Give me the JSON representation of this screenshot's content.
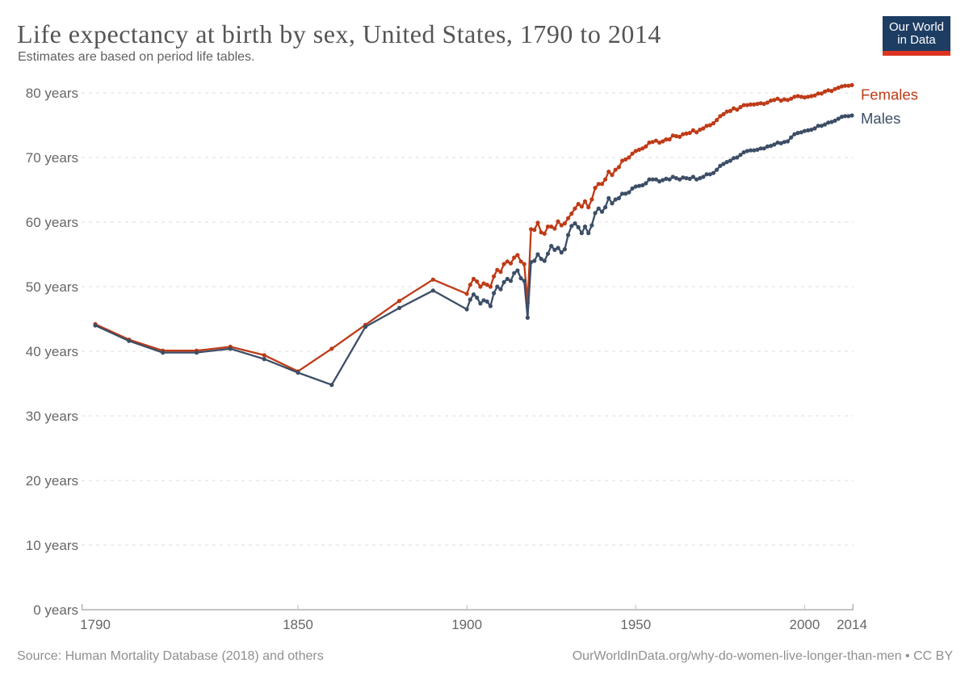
{
  "header": {
    "title": "Life expectancy at birth by sex, United States, 1790 to 2014",
    "subtitle": "Estimates are based on period life tables."
  },
  "logo": {
    "line1": "Our World",
    "line2": "in Data",
    "bg_color": "#1d3d63",
    "stripe_color": "#dc3421"
  },
  "footer": {
    "source": "Source: Human Mortality Database (2018) and others",
    "right_text": "OurWorldInData.org/why-do-women-live-longer-than-men • CC BY"
  },
  "colors": {
    "female_series": "#be3b17",
    "male_series": "#3c4e66",
    "title_text": "#555555",
    "tick_text": "#666666",
    "gridline": "#dedede",
    "axis_line": "#b0b0b0",
    "footer_text": "#8f8f8f"
  },
  "chart_data": {
    "type": "line",
    "title": "Life expectancy at birth by sex, United States, 1790 to 2014",
    "subtitle": "Estimates are based on period life tables.",
    "xlabel": "",
    "ylabel": "",
    "x_range": [
      1790,
      2014
    ],
    "y_range": [
      0,
      80
    ],
    "grid": "horizontal-dashed",
    "legend_position": "right-of-line-ends",
    "y_ticks": [
      {
        "value": 0,
        "label": "0 years"
      },
      {
        "value": 10,
        "label": "10 years"
      },
      {
        "value": 20,
        "label": "20 years"
      },
      {
        "value": 30,
        "label": "30 years"
      },
      {
        "value": 40,
        "label": "40 years"
      },
      {
        "value": 50,
        "label": "50 years"
      },
      {
        "value": 60,
        "label": "60 years"
      },
      {
        "value": 70,
        "label": "70 years"
      },
      {
        "value": 80,
        "label": "80 years"
      }
    ],
    "x_ticks": [
      {
        "year": 1790,
        "label": "1790",
        "tick": false
      },
      {
        "year": 1850,
        "label": "1850",
        "tick": true
      },
      {
        "year": 1900,
        "label": "1900",
        "tick": true
      },
      {
        "year": 1950,
        "label": "1950",
        "tick": true
      },
      {
        "year": 2000,
        "label": "2000",
        "tick": true
      },
      {
        "year": 2014,
        "label": "2014",
        "tick": false
      }
    ],
    "x": [
      1790,
      1800,
      1810,
      1820,
      1830,
      1840,
      1850,
      1860,
      1870,
      1880,
      1890,
      1900,
      1901,
      1902,
      1903,
      1904,
      1905,
      1906,
      1907,
      1908,
      1909,
      1910,
      1911,
      1912,
      1913,
      1914,
      1915,
      1916,
      1917,
      1918,
      1919,
      1920,
      1921,
      1922,
      1923,
      1924,
      1925,
      1926,
      1927,
      1928,
      1929,
      1930,
      1931,
      1932,
      1933,
      1934,
      1935,
      1936,
      1937,
      1938,
      1939,
      1940,
      1941,
      1942,
      1943,
      1944,
      1945,
      1946,
      1947,
      1948,
      1949,
      1950,
      1951,
      1952,
      1953,
      1954,
      1955,
      1956,
      1957,
      1958,
      1959,
      1960,
      1961,
      1962,
      1963,
      1964,
      1965,
      1966,
      1967,
      1968,
      1969,
      1970,
      1971,
      1972,
      1973,
      1974,
      1975,
      1976,
      1977,
      1978,
      1979,
      1980,
      1981,
      1982,
      1983,
      1984,
      1985,
      1986,
      1987,
      1988,
      1989,
      1990,
      1991,
      1992,
      1993,
      1994,
      1995,
      1996,
      1997,
      1998,
      1999,
      2000,
      2001,
      2002,
      2003,
      2004,
      2005,
      2006,
      2007,
      2008,
      2009,
      2010,
      2011,
      2012,
      2013,
      2014
    ],
    "series": [
      {
        "name": "Females",
        "color": "#be3b17",
        "label_offset_y": 18,
        "values": [
          44.2,
          41.8,
          40.1,
          40.1,
          40.7,
          39.4,
          36.9,
          40.4,
          44.1,
          47.8,
          51.1,
          48.9,
          50.3,
          51.2,
          50.8,
          50.0,
          50.5,
          50.3,
          50.0,
          51.6,
          52.6,
          52.3,
          53.5,
          53.9,
          53.6,
          54.5,
          54.9,
          53.9,
          53.5,
          47.5,
          58.9,
          58.8,
          59.9,
          58.4,
          58.2,
          59.3,
          59.3,
          59.0,
          60.1,
          59.5,
          59.8,
          60.6,
          61.3,
          62.1,
          62.8,
          62.4,
          63.2,
          62.3,
          63.5,
          65.3,
          65.9,
          65.9,
          66.6,
          67.8,
          67.3,
          68.1,
          68.5,
          69.5,
          69.7,
          70.0,
          70.6,
          71.0,
          71.2,
          71.4,
          71.7,
          72.3,
          72.4,
          72.6,
          72.3,
          72.5,
          72.8,
          72.8,
          73.4,
          73.3,
          73.2,
          73.6,
          73.7,
          73.8,
          74.2,
          73.9,
          74.3,
          74.5,
          74.9,
          75.0,
          75.3,
          75.8,
          76.4,
          76.7,
          77.1,
          77.2,
          77.6,
          77.4,
          77.8,
          78.1,
          78.1,
          78.2,
          78.2,
          78.3,
          78.4,
          78.3,
          78.5,
          78.8,
          78.9,
          79.1,
          78.8,
          79.0,
          78.9,
          79.1,
          79.4,
          79.5,
          79.4,
          79.3,
          79.4,
          79.5,
          79.6,
          79.9,
          79.9,
          80.2,
          80.4,
          80.3,
          80.6,
          80.8,
          81.0,
          81.1,
          81.1,
          81.2
        ]
      },
      {
        "name": "Males",
        "color": "#3c4e66",
        "label_offset_y": 10,
        "values": [
          44.0,
          41.6,
          39.8,
          39.8,
          40.4,
          38.8,
          36.7,
          34.8,
          43.8,
          46.7,
          49.4,
          46.5,
          48.0,
          48.8,
          48.3,
          47.4,
          47.9,
          47.7,
          47.0,
          49.0,
          50.0,
          49.6,
          50.7,
          51.2,
          50.9,
          52.1,
          52.5,
          51.3,
          50.9,
          45.2,
          53.8,
          54.0,
          55.0,
          54.3,
          54.0,
          55.1,
          56.3,
          55.7,
          56.0,
          55.3,
          55.8,
          58.0,
          59.4,
          59.8,
          59.2,
          58.3,
          59.3,
          58.3,
          59.5,
          61.4,
          62.1,
          61.6,
          62.3,
          63.7,
          62.9,
          63.5,
          63.7,
          64.4,
          64.4,
          64.6,
          65.2,
          65.5,
          65.6,
          65.7,
          66.0,
          66.6,
          66.6,
          66.6,
          66.3,
          66.5,
          66.7,
          66.6,
          67.0,
          66.8,
          66.6,
          66.9,
          66.8,
          66.7,
          67.0,
          66.6,
          66.8,
          67.0,
          67.4,
          67.4,
          67.6,
          68.1,
          68.7,
          69.0,
          69.3,
          69.5,
          69.9,
          70.0,
          70.4,
          70.8,
          71.0,
          71.1,
          71.1,
          71.2,
          71.4,
          71.4,
          71.7,
          71.8,
          72.0,
          72.3,
          72.2,
          72.4,
          72.5,
          73.1,
          73.6,
          73.8,
          73.9,
          74.1,
          74.2,
          74.3,
          74.5,
          74.9,
          74.9,
          75.1,
          75.4,
          75.5,
          75.7,
          76.0,
          76.3,
          76.4,
          76.4,
          76.5
        ]
      }
    ]
  }
}
